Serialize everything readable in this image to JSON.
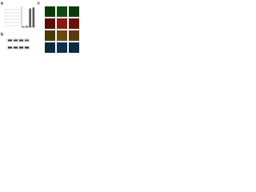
{
  "panels": {
    "a": "a",
    "b": "b",
    "c": "c"
  },
  "chart_data": {
    "type": "bar",
    "categories": [
      null,
      null,
      null,
      null
    ],
    "values": [
      0.4,
      0.6,
      9,
      9.5
    ],
    "color": "#555555",
    "ylim": [
      0,
      10
    ]
  }
}
